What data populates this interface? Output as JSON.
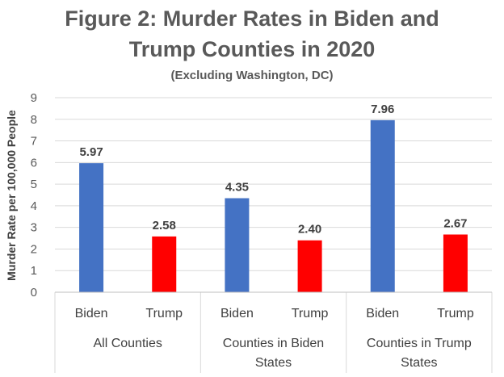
{
  "chart_data": {
    "type": "bar",
    "title_line1": "Figure 2: Murder Rates in Biden and",
    "title_line2": "Trump Counties in 2020",
    "subtitle": "(Excluding Washington, DC)",
    "ylabel": "Murder Rate per 100,000 People",
    "ylim": [
      0,
      9
    ],
    "yticks": [
      "0",
      "1",
      "2",
      "3",
      "4",
      "5",
      "6",
      "7",
      "8",
      "9"
    ],
    "grid": true,
    "groups": [
      {
        "name": "All Counties",
        "name_lines": [
          "All Counties"
        ],
        "bars": [
          {
            "label": "Biden",
            "value": 5.97,
            "value_label": "5.97",
            "color": "#4472C4"
          },
          {
            "label": "Trump",
            "value": 2.58,
            "value_label": "2.58",
            "color": "#FF0000"
          }
        ]
      },
      {
        "name": "Counties in Biden States",
        "name_lines": [
          "Counties in Biden",
          "States"
        ],
        "bars": [
          {
            "label": "Biden",
            "value": 4.35,
            "value_label": "4.35",
            "color": "#4472C4"
          },
          {
            "label": "Trump",
            "value": 2.4,
            "value_label": "2.40",
            "color": "#FF0000"
          }
        ]
      },
      {
        "name": "Counties in Trump States",
        "name_lines": [
          "Counties in Trump",
          "States"
        ],
        "bars": [
          {
            "label": "Biden",
            "value": 7.96,
            "value_label": "7.96",
            "color": "#4472C4"
          },
          {
            "label": "Trump",
            "value": 2.67,
            "value_label": "2.67",
            "color": "#FF0000"
          }
        ]
      }
    ]
  }
}
